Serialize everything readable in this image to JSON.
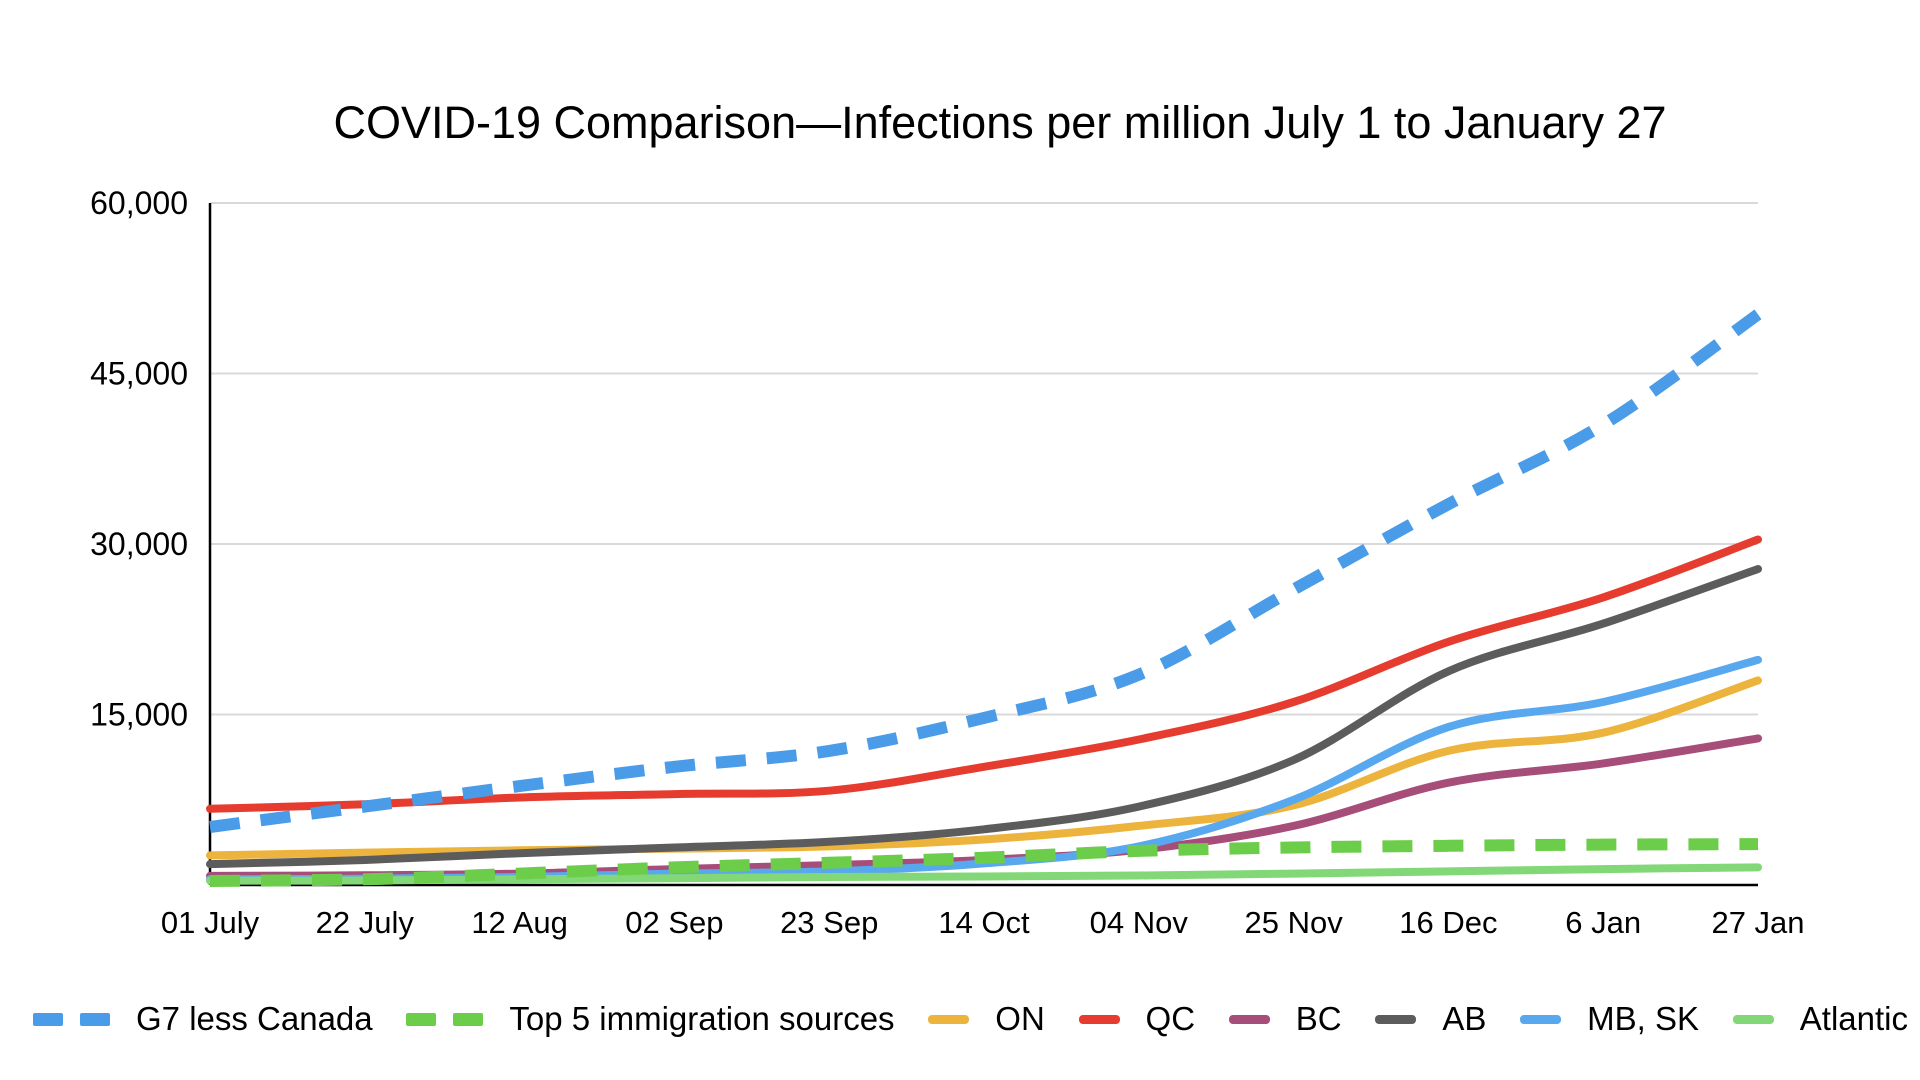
{
  "title": "COVID-19 Comparison—Infections per million July 1 to January 27",
  "chart_data": {
    "type": "line",
    "title": "COVID-19 Comparison—Infections per million July 1 to January 27",
    "xlabel": "",
    "ylabel": "",
    "x_labels": [
      "01 July",
      "22 July",
      "12 Aug",
      "02 Sep",
      "23 Sep",
      "14 Oct",
      "04 Nov",
      "25 Nov",
      "16 Dec",
      "6 Jan",
      "27 Jan"
    ],
    "ylim": [
      0,
      60000
    ],
    "y_ticks": [
      15000,
      30000,
      45000,
      60000
    ],
    "y_tick_labels": [
      "15,000",
      "30,000",
      "45,000",
      "60,000"
    ],
    "grid": "horizontal",
    "grid_color": "#d9d9d9",
    "axis_color": "#000000",
    "background": "#ffffff",
    "legend_position": "bottom",
    "series": [
      {
        "name": "G7 less Canada",
        "color": "#4a9ce8",
        "style": "dashed",
        "z": 8,
        "values": [
          5100,
          6900,
          8700,
          10400,
          11800,
          14700,
          18500,
          26000,
          33500,
          40500,
          50200
        ]
      },
      {
        "name": "Top 5 immigration sources",
        "color": "#6ccd4a",
        "style": "dashed",
        "z": 7,
        "values": [
          350,
          500,
          1000,
          1550,
          1950,
          2400,
          3000,
          3300,
          3450,
          3550,
          3600
        ]
      },
      {
        "name": "ON",
        "color": "#ecb43d",
        "style": "solid",
        "z": 1,
        "values": [
          2600,
          2850,
          3050,
          3200,
          3400,
          4000,
          5200,
          7000,
          11800,
          13400,
          18000
        ]
      },
      {
        "name": "QC",
        "color": "#e63c2f",
        "style": "solid",
        "z": 2,
        "values": [
          6700,
          7100,
          7700,
          8000,
          8300,
          10400,
          12800,
          16100,
          21400,
          25300,
          30400
        ]
      },
      {
        "name": "BC",
        "color": "#a64d79",
        "style": "solid",
        "z": 3,
        "values": [
          800,
          850,
          1000,
          1400,
          1750,
          2200,
          3100,
          5200,
          9000,
          10700,
          12900
        ]
      },
      {
        "name": "AB",
        "color": "#5c5c5c",
        "style": "solid",
        "z": 4,
        "values": [
          1840,
          2200,
          2800,
          3300,
          3800,
          4900,
          6900,
          11000,
          18800,
          23000,
          27800
        ]
      },
      {
        "name": "MB, SK",
        "color": "#58a8ef",
        "style": "solid",
        "z": 5,
        "values": [
          500,
          550,
          700,
          1000,
          1200,
          1900,
          3400,
          7500,
          13900,
          16100,
          19800
        ]
      },
      {
        "name": "Atlantic",
        "color": "#82d877",
        "style": "solid",
        "z": 6,
        "values": [
          380,
          400,
          500,
          600,
          700,
          750,
          840,
          1000,
          1200,
          1400,
          1550
        ]
      }
    ]
  }
}
